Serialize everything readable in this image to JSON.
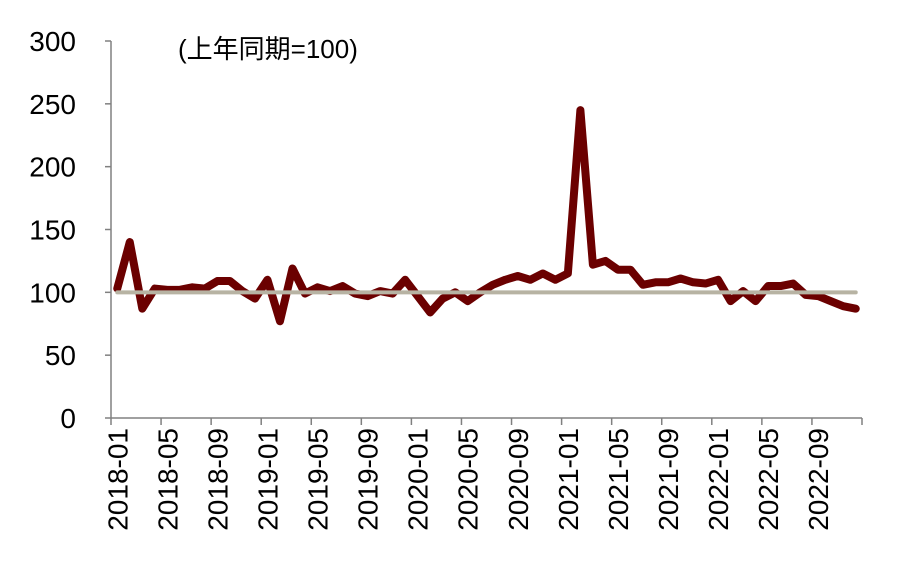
{
  "chart_data": {
    "type": "line",
    "title": "",
    "annotation": "(上年同期=100)",
    "xlabel": "",
    "ylabel": "",
    "ylim": [
      0,
      300
    ],
    "yticks": [
      0,
      50,
      100,
      150,
      200,
      250,
      300
    ],
    "x": [
      "2018-01",
      "2018-02",
      "2018-03",
      "2018-04",
      "2018-05",
      "2018-06",
      "2018-07",
      "2018-08",
      "2018-09",
      "2018-10",
      "2018-11",
      "2018-12",
      "2019-01",
      "2019-02",
      "2019-03",
      "2019-04",
      "2019-05",
      "2019-06",
      "2019-07",
      "2019-08",
      "2019-09",
      "2019-10",
      "2019-11",
      "2019-12",
      "2020-01",
      "2020-02",
      "2020-03",
      "2020-04",
      "2020-05",
      "2020-06",
      "2020-07",
      "2020-08",
      "2020-09",
      "2020-10",
      "2020-11",
      "2020-12",
      "2021-01",
      "2021-02",
      "2021-03",
      "2021-04",
      "2021-05",
      "2021-06",
      "2021-07",
      "2021-08",
      "2021-09",
      "2021-10",
      "2021-11",
      "2021-12",
      "2022-01",
      "2022-02",
      "2022-03",
      "2022-04",
      "2022-05",
      "2022-06",
      "2022-07",
      "2022-08",
      "2022-09",
      "2022-10",
      "2022-11",
      "2022-12"
    ],
    "xtick_labels": [
      "2018-01",
      "2018-05",
      "2018-09",
      "2019-01",
      "2019-05",
      "2019-09",
      "2020-01",
      "2020-05",
      "2020-09",
      "2021-01",
      "2021-05",
      "2021-09",
      "2022-01",
      "2022-05",
      "2022-09"
    ],
    "series": [
      {
        "color": "#6b0000",
        "values": [
          103,
          140,
          87,
          103,
          102,
          102,
          104,
          103,
          109,
          109,
          101,
          95,
          110,
          77,
          119,
          99,
          104,
          101,
          105,
          99,
          97,
          101,
          99,
          110,
          97,
          84,
          95,
          100,
          93,
          100,
          106,
          110,
          113,
          110,
          115,
          110,
          115,
          245,
          122,
          125,
          118,
          118,
          106,
          108,
          108,
          111,
          108,
          107,
          110,
          93,
          101,
          93,
          105,
          105,
          107,
          98,
          97,
          93,
          89,
          87
        ]
      },
      {
        "color": "#b7b3a3",
        "values": [
          100,
          100,
          100,
          100,
          100,
          100,
          100,
          100,
          100,
          100,
          100,
          100,
          100,
          100,
          100,
          100,
          100,
          100,
          100,
          100,
          100,
          100,
          100,
          100,
          100,
          100,
          100,
          100,
          100,
          100,
          100,
          100,
          100,
          100,
          100,
          100,
          100,
          100,
          100,
          100,
          100,
          100,
          100,
          100,
          100,
          100,
          100,
          100,
          100,
          100,
          100,
          100,
          100,
          100,
          100,
          100,
          100,
          100,
          100,
          100
        ]
      }
    ],
    "grid": false,
    "legend": "none"
  }
}
